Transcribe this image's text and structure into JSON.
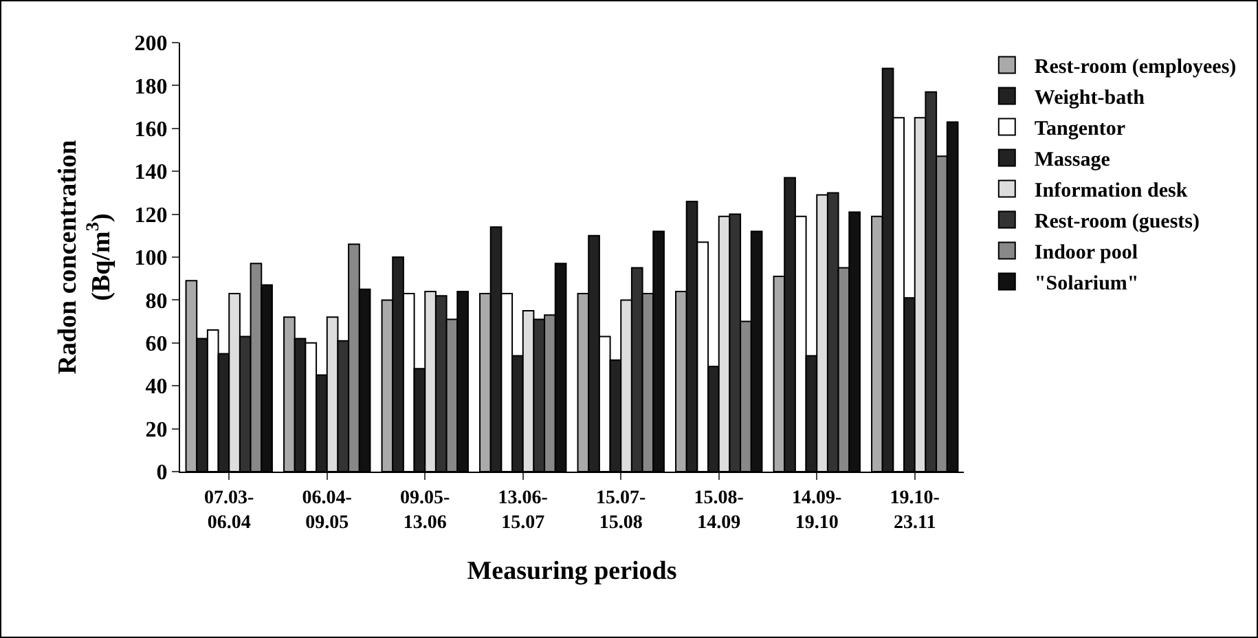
{
  "chart_data": {
    "type": "bar",
    "xlabel": "Measuring periods",
    "ylabel": "Radon concentration\n(Bq/m$^{3}$)",
    "categories": [
      "07.03-\n06.04",
      "06.04-\n09.05",
      "09.05-\n13.06",
      "13.06-\n15.07",
      "15.07-\n15.08",
      "15.08-\n14.09",
      "14.09-\n19.10",
      "19.10-\n23.11"
    ],
    "series": [
      {
        "name": "Rest-room (employees)",
        "color": "#aaaaaa",
        "values": [
          89,
          72,
          80,
          83,
          83,
          84,
          91,
          119
        ]
      },
      {
        "name": "Weight-bath",
        "color": "#222222",
        "values": [
          62,
          62,
          100,
          114,
          110,
          126,
          137,
          188
        ]
      },
      {
        "name": "Tangentor",
        "color": "#ffffff",
        "values": [
          66,
          60,
          83,
          83,
          63,
          107,
          119,
          165
        ]
      },
      {
        "name": "Massage",
        "color": "#222222",
        "values": [
          55,
          45,
          48,
          54,
          52,
          49,
          54,
          81
        ]
      },
      {
        "name": "Information desk",
        "color": "#dddddd",
        "values": [
          83,
          72,
          84,
          75,
          80,
          119,
          129,
          165
        ]
      },
      {
        "name": "Rest-room (guests)",
        "color": "#333333",
        "values": [
          63,
          61,
          82,
          71,
          95,
          120,
          130,
          177
        ]
      },
      {
        "name": "Indoor pool",
        "color": "#888888",
        "values": [
          97,
          106,
          71,
          73,
          83,
          70,
          95,
          147
        ]
      },
      {
        "name": "\"Solarium\"",
        "color": "#111111",
        "values": [
          87,
          85,
          84,
          97,
          112,
          112,
          121,
          163
        ]
      }
    ],
    "ylim": [
      0,
      200
    ],
    "yticks": [
      0,
      20,
      40,
      60,
      80,
      100,
      120,
      140,
      160,
      180,
      200
    ],
    "grid": false,
    "legend": "right"
  }
}
